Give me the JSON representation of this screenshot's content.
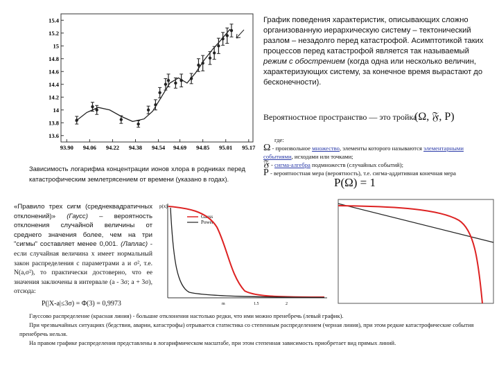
{
  "figure": {
    "type": "scatter",
    "x": [
      93.97,
      94.08,
      94.11,
      94.28,
      94.4,
      94.47,
      94.52,
      94.55,
      94.59,
      94.61,
      94.66,
      94.7,
      94.77,
      94.82,
      94.85,
      94.9,
      94.93,
      94.96,
      94.99,
      95.02,
      95.05
    ],
    "values": [
      13.84,
      14.05,
      14.0,
      13.85,
      13.78,
      14.0,
      14.08,
      14.27,
      14.4,
      14.46,
      14.42,
      14.46,
      14.49,
      14.7,
      14.73,
      14.81,
      14.89,
      15.0,
      15.11,
      15.16,
      15.24
    ],
    "errors": [
      0.06,
      0.07,
      0.07,
      0.06,
      0.05,
      0.06,
      0.08,
      0.08,
      0.09,
      0.1,
      0.08,
      0.1,
      0.08,
      0.1,
      0.12,
      0.1,
      0.1,
      0.12,
      0.1,
      0.12,
      0.1
    ],
    "curve": {
      "x": [
        93.96,
        94.04,
        94.12,
        94.2,
        94.28,
        94.36,
        94.44,
        94.5,
        94.56,
        94.62,
        94.68,
        94.74,
        94.8,
        94.86,
        94.92,
        94.98,
        95.04
      ],
      "values": [
        13.82,
        13.96,
        14.04,
        14.0,
        13.9,
        13.82,
        13.86,
        13.98,
        14.2,
        14.42,
        14.5,
        14.42,
        14.58,
        14.78,
        14.95,
        15.1,
        15.26
      ]
    },
    "color": "#222222",
    "xlim": [
      93.86,
      95.2
    ],
    "ylim": [
      13.5,
      15.5
    ],
    "xticks": [
      {
        "value": 93.9,
        "label": "93.90"
      },
      {
        "value": 94.06,
        "label": "94.06"
      },
      {
        "value": 94.22,
        "label": "94.22"
      },
      {
        "value": 94.38,
        "label": "94.38"
      },
      {
        "value": 94.54,
        "label": "94.54"
      },
      {
        "value": 94.69,
        "label": "94.69"
      },
      {
        "value": 94.85,
        "label": "94.85"
      },
      {
        "value": 95.01,
        "label": "95.01"
      },
      {
        "value": 95.17,
        "label": "95.17"
      }
    ],
    "yticks": [
      13.6,
      13.8,
      14,
      14.2,
      14.4,
      14.6,
      14.8,
      15,
      15.2,
      15.4
    ]
  },
  "caption": "Зависимость логарифма концентрации ионов хлора в родниках перед катастрофическим землетрясением от времени (указано в годах).",
  "description": {
    "before": "График поведения характеристик, описывающих сложно организованную иерархическую систему – тектонический разлом – незадолго перед катастрофой. Асимптотикой таких процессов перед катастрофой является так называемый ",
    "italic": "режим с обострением",
    "after": " (когда одна или несколько величин, характеризующих систему, за конечное время вырастают до бесконечности)."
  },
  "probability": {
    "heading": "Вероятностное пространство — это тройка",
    "formula": "(Ω, 𝔉, P)",
    "where": "где:",
    "omega": {
      "symbol": "Ω",
      "t1": " - произвольное ",
      "link1": "множество",
      "t2": ", элементы которого называются ",
      "link2": "элементарными событиями",
      "t3": ", исходами или точками;"
    },
    "sigma": {
      "symbol": "𝔉",
      "t1": " - ",
      "link": "сигма-алгебра",
      "t2": " подмножеств (случайных событий);"
    },
    "measure": {
      "symbol": "P",
      "text": " - вероятностная мера (вероятность), т.е. сигма-аддитивная конечная мера",
      "formula": "P(Ω) = 1"
    }
  },
  "three_sigma": {
    "title": "«Правило трех сигм (среднеквадратичных отклонений)»",
    "gauss": "(Гаусс)",
    "gauss_text": " – вероятность отклонения случайной величины от среднего значения более, чем на три \"сигмы\" составляет менее 0,001.",
    "laplace": "(Лаплас)",
    "laplace_text": " - если случайная величина x имеет нормальный закон распределения с параметрами a и σ², т.е. N(a,σ²), то практически достоверно, что ее значения заключены в интервале (a - 3σ; a + 3σ), отсюда:",
    "formula": "P(|X-a|≤3σ) = Φ(3) = 0,9973"
  },
  "left_plot": {
    "y_label": "p(x)",
    "legend": [
      "Gauss",
      "Power"
    ],
    "x_labels": [
      "m",
      "1.5",
      "2"
    ]
  },
  "notes": [
    "Гауссово распределение (красная линия) - большие отклонения настолько редки, что ими можно пренебречь (левый график).",
    "При чрезвычайных ситуациях (бедствия, аварии, катастрофы) отрывается статистика со степенным распределением (черная линия), при этом редкие катастрофические события пренебречь нельзя.",
    "На правом графике распределения представлены в логарифмическом масштабе, при этом степенная зависимость приобретает вид прямых линий."
  ]
}
